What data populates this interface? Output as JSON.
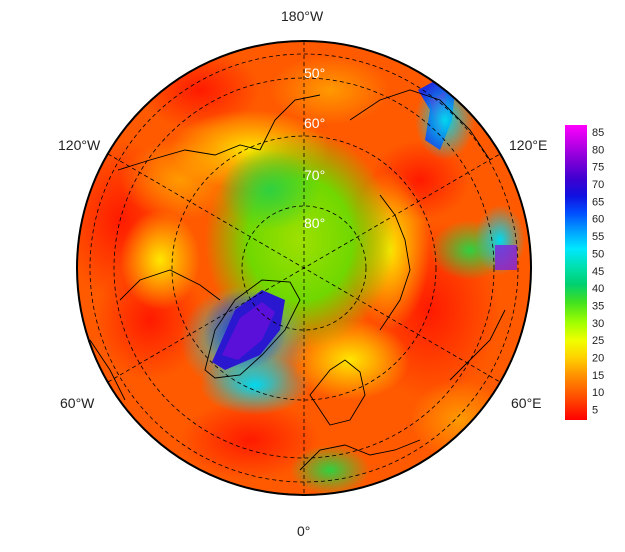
{
  "map": {
    "projection": "north-polar-stereographic",
    "longitude_labels": [
      {
        "id": "lon-180w",
        "text": "180°W"
      },
      {
        "id": "lon-120w",
        "text": "120°W"
      },
      {
        "id": "lon-120e",
        "text": "120°E"
      },
      {
        "id": "lon-60w",
        "text": "60°W"
      },
      {
        "id": "lon-60e",
        "text": "60°E"
      },
      {
        "id": "lon-0",
        "text": "0°"
      }
    ],
    "latitude_labels": [
      "50°",
      "60°",
      "70°",
      "80°"
    ]
  },
  "colorbar": {
    "ticks": [
      "85",
      "80",
      "75",
      "70",
      "65",
      "60",
      "55",
      "50",
      "45",
      "40",
      "35",
      "30",
      "25",
      "20",
      "15",
      "10",
      "5"
    ],
    "min": 2,
    "max": 87,
    "colors": [
      "#ff0000",
      "#ff4000",
      "#ff8000",
      "#ffb000",
      "#ffe000",
      "#e0ff00",
      "#a0ff00",
      "#40e000",
      "#00d060",
      "#00e0b0",
      "#00e0ff",
      "#00a0ff",
      "#0050ff",
      "#1010e0",
      "#6000d0",
      "#b000e0",
      "#ff00ff"
    ]
  },
  "chart_data": {
    "type": "heatmap",
    "title": "",
    "colorbar_range": [
      2,
      87
    ],
    "colorbar_ticks": [
      5,
      10,
      15,
      20,
      25,
      30,
      35,
      40,
      45,
      50,
      55,
      60,
      65,
      70,
      75,
      80,
      85
    ],
    "latitude_circles": [
      50,
      60,
      70,
      80
    ],
    "meridian_labels": [
      "0°",
      "60°E",
      "120°E",
      "180°W",
      "120°W",
      "60°W"
    ]
  }
}
